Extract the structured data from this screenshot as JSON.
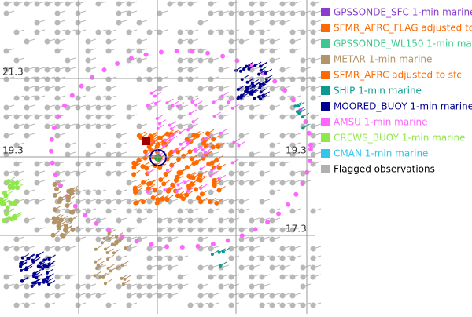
{
  "map": {
    "grid_labels": [
      "21.3",
      "19.3",
      "19.3",
      "17.3"
    ],
    "legend": [
      {
        "label": "GPSSONDE_SFC 1-min marine",
        "color": "#8a3ccf"
      },
      {
        "label": "SFMR_AFRC_FLAG adjusted to",
        "color": "#ff6a00"
      },
      {
        "label": "GPSSONDE_WL150 1-min mar",
        "color": "#3cc98f"
      },
      {
        "label": "METAR 1-min marine",
        "color": "#b39466"
      },
      {
        "label": "SFMR_AFRC adjusted to sfc",
        "color": "#ff6a00"
      },
      {
        "label": "SHIP 1-min marine",
        "color": "#0a9a8f"
      },
      {
        "label": "MOORED_BUOY 1-min marine",
        "color": "#00008f"
      },
      {
        "label": "AMSU 1-min marine",
        "color": "#ff66ff"
      },
      {
        "label": "CREWS_BUOY 1-min marine",
        "color": "#8fe84a"
      },
      {
        "label": "CMAN 1-min marine",
        "color": "#2fc6e8"
      },
      {
        "label": "Flagged observations",
        "color": "#b0b0b0"
      }
    ]
  }
}
